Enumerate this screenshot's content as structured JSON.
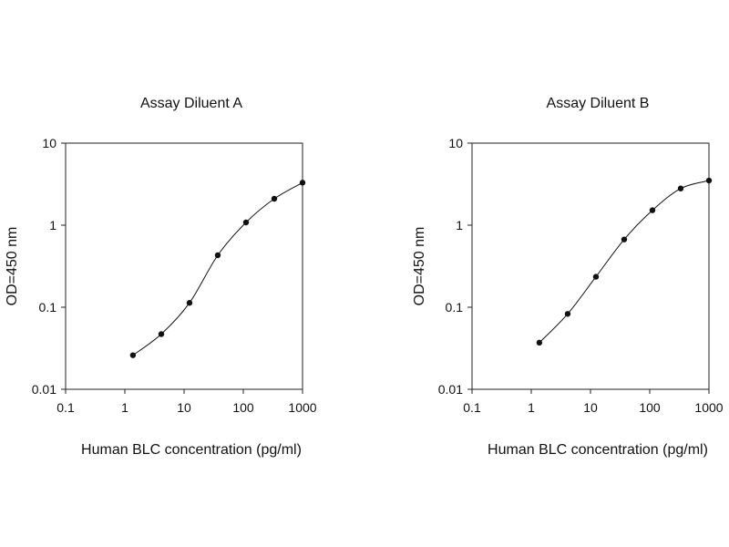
{
  "chart_data": [
    {
      "type": "line",
      "title": "Assay Diluent A",
      "xlabel": "Human BLC concentration (pg/ml)",
      "ylabel": "OD=450 nm",
      "x_scale": "log",
      "y_scale": "log",
      "xlim": [
        0.1,
        1000
      ],
      "ylim": [
        0.01,
        10
      ],
      "xticks": [
        "0.1",
        "1",
        "10",
        "100",
        "1000"
      ],
      "yticks": [
        "0.01",
        "0.1",
        "1",
        "10"
      ],
      "grid": false,
      "series": [
        {
          "x": [
            1.37,
            4.12,
            12.35,
            37.04,
            111.1,
            333.3,
            1000
          ],
          "y": [
            0.026,
            0.047,
            0.113,
            0.43,
            1.08,
            2.1,
            3.3
          ]
        }
      ]
    },
    {
      "type": "line",
      "title": "Assay Diluent B",
      "xlabel": "Human BLC concentration (pg/ml)",
      "ylabel": "OD=450 nm",
      "x_scale": "log",
      "y_scale": "log",
      "xlim": [
        0.1,
        1000
      ],
      "ylim": [
        0.01,
        10
      ],
      "xticks": [
        "0.1",
        "1",
        "10",
        "100",
        "1000"
      ],
      "yticks": [
        "0.01",
        "0.1",
        "1",
        "10"
      ],
      "grid": false,
      "series": [
        {
          "x": [
            1.37,
            4.12,
            12.35,
            37.04,
            111.1,
            333.3,
            1000
          ],
          "y": [
            0.037,
            0.083,
            0.235,
            0.67,
            1.52,
            2.8,
            3.5
          ]
        }
      ]
    }
  ]
}
